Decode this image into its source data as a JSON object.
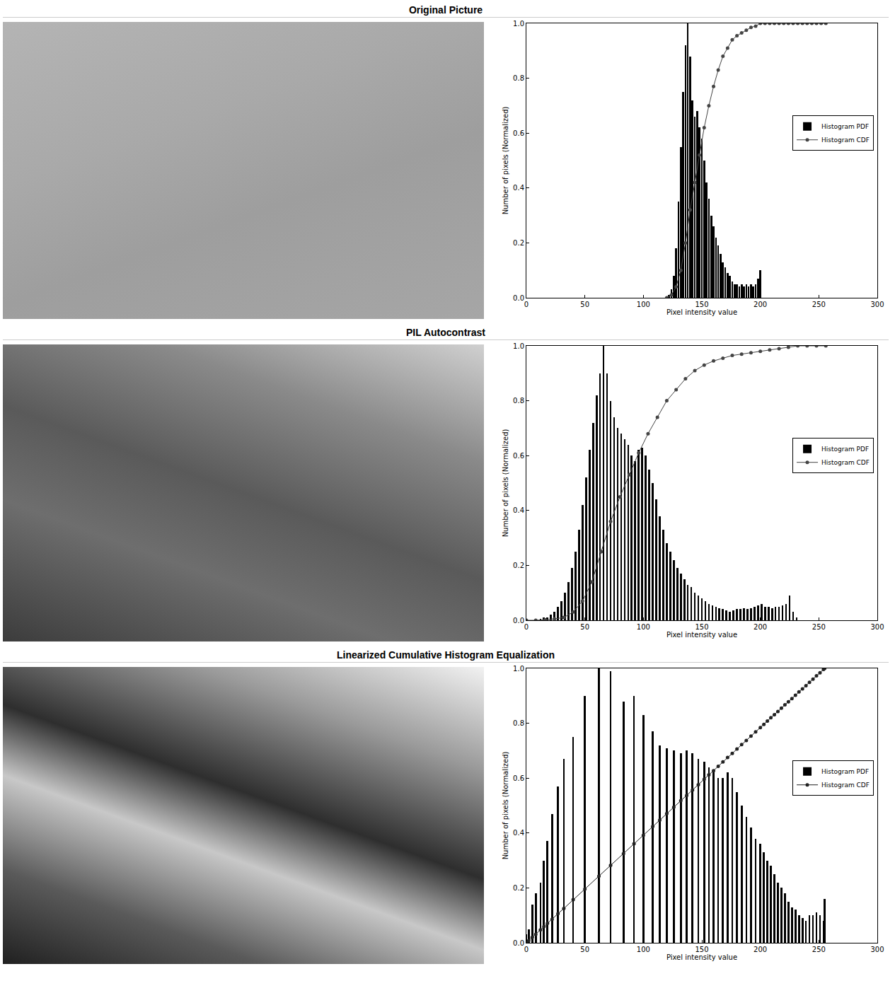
{
  "chart_data": [
    {
      "type": "bar",
      "title": "Original Picture",
      "x_label": "Pixel intensity value",
      "y_label": "Number of pixels (Normalized)",
      "xlim": [
        0,
        300
      ],
      "xticks": [
        0,
        50,
        100,
        150,
        200,
        250,
        300
      ],
      "ylim": [
        0,
        1
      ],
      "yticks": [
        {
          "value": 0,
          "label": "0.0"
        },
        {
          "value": 0.2,
          "label": "0.2"
        },
        {
          "value": 0.4,
          "label": "0.4"
        },
        {
          "value": 0.6,
          "label": "0.6"
        },
        {
          "value": 0.8,
          "label": "0.8"
        },
        {
          "value": 1,
          "label": "1.0"
        }
      ],
      "grid": false,
      "legend": "center right",
      "series": [
        {
          "name": "Histogram PDF",
          "type": "bar",
          "color": "#000000",
          "x": [
            120,
            122,
            124,
            126,
            128,
            130,
            132,
            134,
            136,
            138,
            140,
            142,
            144,
            146,
            148,
            150,
            152,
            154,
            156,
            158,
            160,
            162,
            164,
            166,
            168,
            170,
            172,
            174,
            176,
            178,
            180,
            182,
            184,
            186,
            188,
            190,
            192,
            194,
            196,
            198,
            200,
            202
          ],
          "values": [
            0,
            0.01,
            0.03,
            0.08,
            0.18,
            0.35,
            0.55,
            0.75,
            0.92,
            1.0,
            0.88,
            0.72,
            0.66,
            0.68,
            0.62,
            0.58,
            0.5,
            0.42,
            0.36,
            0.3,
            0.26,
            0.22,
            0.19,
            0.16,
            0.13,
            0.11,
            0.09,
            0.08,
            0.06,
            0.05,
            0.05,
            0.04,
            0.05,
            0.04,
            0.05,
            0.04,
            0.05,
            0.04,
            0.05,
            0.07,
            0.1,
            0
          ]
        },
        {
          "name": "Histogram CDF",
          "type": "line",
          "color": "#444444",
          "marker": "circle",
          "line_style": "solid",
          "x": [
            120,
            124,
            128,
            132,
            136,
            140,
            144,
            148,
            152,
            156,
            160,
            164,
            168,
            172,
            176,
            180,
            184,
            188,
            192,
            196,
            200,
            204,
            208,
            212,
            216,
            220,
            224,
            228,
            232,
            236,
            240,
            244,
            248,
            252,
            256
          ],
          "values": [
            0,
            0.01,
            0.04,
            0.1,
            0.2,
            0.32,
            0.42,
            0.52,
            0.62,
            0.7,
            0.77,
            0.83,
            0.88,
            0.91,
            0.94,
            0.955,
            0.965,
            0.975,
            0.985,
            0.99,
            1.0,
            1.0,
            1.0,
            1.0,
            1.0,
            1.0,
            1.0,
            1.0,
            1.0,
            1.0,
            1.0,
            1.0,
            1.0,
            1.0,
            1.0
          ]
        }
      ]
    },
    {
      "type": "bar",
      "title": "PIL Autocontrast",
      "x_label": "Pixel intensity value",
      "y_label": "Number of pixels (Normalized)",
      "xlim": [
        0,
        300
      ],
      "xticks": [
        0,
        50,
        100,
        150,
        200,
        250,
        300
      ],
      "ylim": [
        0,
        1
      ],
      "yticks": [
        {
          "value": 0,
          "label": "0.0"
        },
        {
          "value": 0.2,
          "label": "0.2"
        },
        {
          "value": 0.4,
          "label": "0.4"
        },
        {
          "value": 0.6,
          "label": "0.6"
        },
        {
          "value": 0.8,
          "label": "0.8"
        },
        {
          "value": 1,
          "label": "1.0"
        }
      ],
      "grid": false,
      "legend": "center right",
      "series": [
        {
          "name": "Histogram PDF",
          "type": "bar",
          "color": "#000000",
          "x": [
            12,
            15,
            18,
            21,
            24,
            27,
            30,
            33,
            36,
            39,
            42,
            45,
            48,
            51,
            54,
            57,
            60,
            63,
            66,
            69,
            72,
            75,
            78,
            81,
            84,
            87,
            90,
            93,
            96,
            99,
            102,
            105,
            108,
            111,
            114,
            117,
            120,
            123,
            126,
            129,
            132,
            135,
            138,
            141,
            144,
            147,
            150,
            153,
            156,
            159,
            162,
            165,
            168,
            171,
            174,
            177,
            180,
            183,
            186,
            189,
            192,
            195,
            198,
            201,
            204,
            207,
            210,
            213,
            216,
            219,
            222,
            225,
            228,
            231,
            234
          ],
          "values": [
            0.005,
            0.01,
            0.01,
            0.02,
            0.03,
            0.05,
            0.07,
            0.1,
            0.14,
            0.19,
            0.25,
            0.33,
            0.42,
            0.52,
            0.62,
            0.72,
            0.82,
            0.9,
            1.0,
            0.9,
            0.8,
            0.74,
            0.7,
            0.68,
            0.66,
            0.64,
            0.6,
            0.58,
            0.62,
            0.63,
            0.6,
            0.55,
            0.5,
            0.44,
            0.38,
            0.33,
            0.28,
            0.25,
            0.22,
            0.19,
            0.17,
            0.15,
            0.13,
            0.12,
            0.1,
            0.09,
            0.08,
            0.07,
            0.06,
            0.055,
            0.05,
            0.045,
            0.04,
            0.035,
            0.03,
            0.035,
            0.04,
            0.04,
            0.045,
            0.04,
            0.045,
            0.05,
            0.055,
            0.06,
            0.05,
            0.05,
            0.045,
            0.05,
            0.05,
            0.055,
            0.06,
            0.09,
            0.03,
            0.01,
            0
          ]
        },
        {
          "name": "Histogram CDF",
          "type": "line",
          "color": "#444444",
          "marker": "circle",
          "line_style": "solid",
          "x": [
            0,
            8,
            16,
            24,
            32,
            40,
            48,
            56,
            64,
            72,
            80,
            88,
            96,
            104,
            112,
            120,
            128,
            136,
            144,
            152,
            160,
            168,
            176,
            184,
            192,
            200,
            208,
            216,
            224,
            232,
            240,
            248,
            256
          ],
          "values": [
            0,
            0,
            0.002,
            0.005,
            0.01,
            0.03,
            0.07,
            0.14,
            0.25,
            0.36,
            0.45,
            0.53,
            0.61,
            0.68,
            0.74,
            0.8,
            0.84,
            0.88,
            0.91,
            0.93,
            0.945,
            0.955,
            0.965,
            0.97,
            0.975,
            0.98,
            0.985,
            0.99,
            0.995,
            1.0,
            1.0,
            1.0,
            1.0
          ]
        }
      ]
    },
    {
      "type": "bar",
      "title": "Linearized Cumulative Histogram Equalization",
      "x_label": "Pixel intensity value",
      "y_label": "Number of pixels (Normalized)",
      "xlim": [
        0,
        300
      ],
      "xticks": [
        0,
        50,
        100,
        150,
        200,
        250,
        300
      ],
      "ylim": [
        0,
        1
      ],
      "yticks": [
        {
          "value": 0,
          "label": "0.0"
        },
        {
          "value": 0.2,
          "label": "0.2"
        },
        {
          "value": 0.4,
          "label": "0.4"
        },
        {
          "value": 0.6,
          "label": "0.6"
        },
        {
          "value": 0.8,
          "label": "0.8"
        },
        {
          "value": 1,
          "label": "1.0"
        }
      ],
      "grid": false,
      "legend": "center right",
      "series": [
        {
          "name": "Histogram PDF",
          "type": "bar",
          "color": "#000000",
          "x": [
            0,
            2,
            5,
            8,
            12,
            15,
            18,
            22,
            27,
            32,
            40,
            50,
            62,
            72,
            83,
            92,
            100,
            108,
            114,
            120,
            126,
            132,
            137,
            142,
            147,
            152,
            156,
            160,
            164,
            168,
            172,
            176,
            180,
            184,
            188,
            192,
            196,
            200,
            203,
            206,
            209,
            212,
            215,
            218,
            221,
            224,
            227,
            230,
            233,
            236,
            239,
            242,
            245,
            248,
            251,
            254,
            255
          ],
          "values": [
            0.03,
            0.05,
            0.14,
            0.18,
            0.22,
            0.3,
            0.37,
            0.47,
            0.57,
            0.67,
            0.75,
            0.9,
            1.0,
            0.99,
            0.88,
            0.9,
            0.83,
            0.77,
            0.72,
            0.71,
            0.7,
            0.69,
            0.7,
            0.69,
            0.67,
            0.66,
            0.64,
            0.62,
            0.6,
            0.6,
            0.62,
            0.6,
            0.55,
            0.5,
            0.46,
            0.42,
            0.38,
            0.36,
            0.33,
            0.3,
            0.28,
            0.25,
            0.22,
            0.2,
            0.18,
            0.15,
            0.13,
            0.12,
            0.1,
            0.09,
            0.08,
            0.1,
            0.1,
            0.11,
            0.1,
            0.08,
            0.16
          ]
        },
        {
          "name": "Histogram CDF",
          "type": "line",
          "color": "#222222",
          "marker": "circle",
          "line_style": "solid",
          "x": [
            0,
            2,
            5,
            8,
            12,
            15,
            18,
            22,
            27,
            32,
            40,
            50,
            62,
            72,
            83,
            92,
            100,
            108,
            114,
            120,
            126,
            132,
            137,
            142,
            147,
            152,
            156,
            160,
            164,
            168,
            172,
            176,
            180,
            184,
            188,
            192,
            196,
            200,
            203,
            206,
            209,
            212,
            215,
            218,
            221,
            224,
            227,
            230,
            233,
            236,
            239,
            242,
            245,
            248,
            251,
            254,
            255
          ],
          "values": [
            0,
            0.008,
            0.02,
            0.031,
            0.047,
            0.059,
            0.071,
            0.086,
            0.106,
            0.125,
            0.157,
            0.196,
            0.243,
            0.282,
            0.325,
            0.361,
            0.392,
            0.424,
            0.447,
            0.471,
            0.494,
            0.518,
            0.537,
            0.557,
            0.576,
            0.596,
            0.612,
            0.627,
            0.643,
            0.659,
            0.675,
            0.69,
            0.706,
            0.722,
            0.737,
            0.753,
            0.769,
            0.784,
            0.796,
            0.808,
            0.82,
            0.831,
            0.843,
            0.855,
            0.867,
            0.878,
            0.89,
            0.902,
            0.914,
            0.925,
            0.937,
            0.949,
            0.961,
            0.973,
            0.984,
            0.996,
            1.0
          ]
        }
      ]
    }
  ]
}
